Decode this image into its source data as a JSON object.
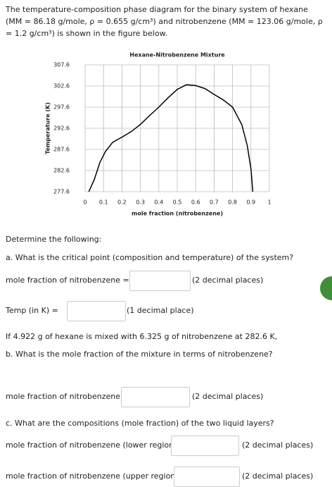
{
  "intro": "The temperature-composition phase diagram for the binary system of hexane (MM = 86.18 g/mole, ρ = 0.655 g/cm³) and nitrobenzene (MM = 123.06 g/mole, ρ = 1.2 g/cm³) is shown in the figure below.",
  "chart_data": {
    "type": "line",
    "title": "Hexane-Nitrobenzene Mixture",
    "x_label": "mole fraction (nitrobenzene)",
    "y_label": "Temperature (K)",
    "x": [
      0.02,
      0.05,
      0.08,
      0.11,
      0.15,
      0.2,
      0.25,
      0.3,
      0.35,
      0.4,
      0.45,
      0.5,
      0.55,
      0.6,
      0.65,
      0.7,
      0.75,
      0.8,
      0.85,
      0.88,
      0.9,
      0.91
    ],
    "values": [
      277.6,
      280.5,
      284.5,
      287.1,
      289.3,
      290.5,
      291.8,
      293.5,
      295.6,
      297.6,
      299.8,
      301.8,
      302.9,
      302.7,
      302,
      300.6,
      299.3,
      297.6,
      293.5,
      288.5,
      283,
      277.6
    ],
    "color": "#000000",
    "xlim": [
      0,
      1
    ],
    "xticks": [
      0,
      0.1,
      0.2,
      0.3,
      0.4,
      0.5,
      0.6,
      0.7,
      0.8,
      0.9,
      1
    ],
    "ylim": [
      277.6,
      307.6
    ],
    "yticks": [
      277.6,
      282.6,
      287.6,
      292.6,
      297.6,
      302.6,
      307.6
    ],
    "grid": true
  },
  "determine": "Determine the following:",
  "question_a": "a. What is the critical point (composition and temperature) of the system?",
  "fields_a": [
    {
      "label": "mole fraction of nitrobenzene =",
      "hint": "(2 decimal places)"
    },
    {
      "label": "Temp (in K) =",
      "hint": "(1 decimal place)"
    }
  ],
  "setup": "If 4.922 g of hexane is mixed with 6.325 g of nitrobenzene at 282.6 K,",
  "question_b": "b. What is the mole fraction of the mixture in terms of nitrobenzene?",
  "fields_b": [
    {
      "label": "mole fraction of nitrobenzene =",
      "hint": "(2 decimal places)"
    }
  ],
  "question_c": "c. What are the compositions (mole fraction) of the two liquid layers?",
  "fields_c": [
    {
      "label": "mole fraction of nitrobenzene (lower region) =",
      "hint": "(2 decimal places)"
    },
    {
      "label": "mole fraction of nitrobenzene (upper region) =",
      "hint": "(2 decimal places)"
    }
  ]
}
